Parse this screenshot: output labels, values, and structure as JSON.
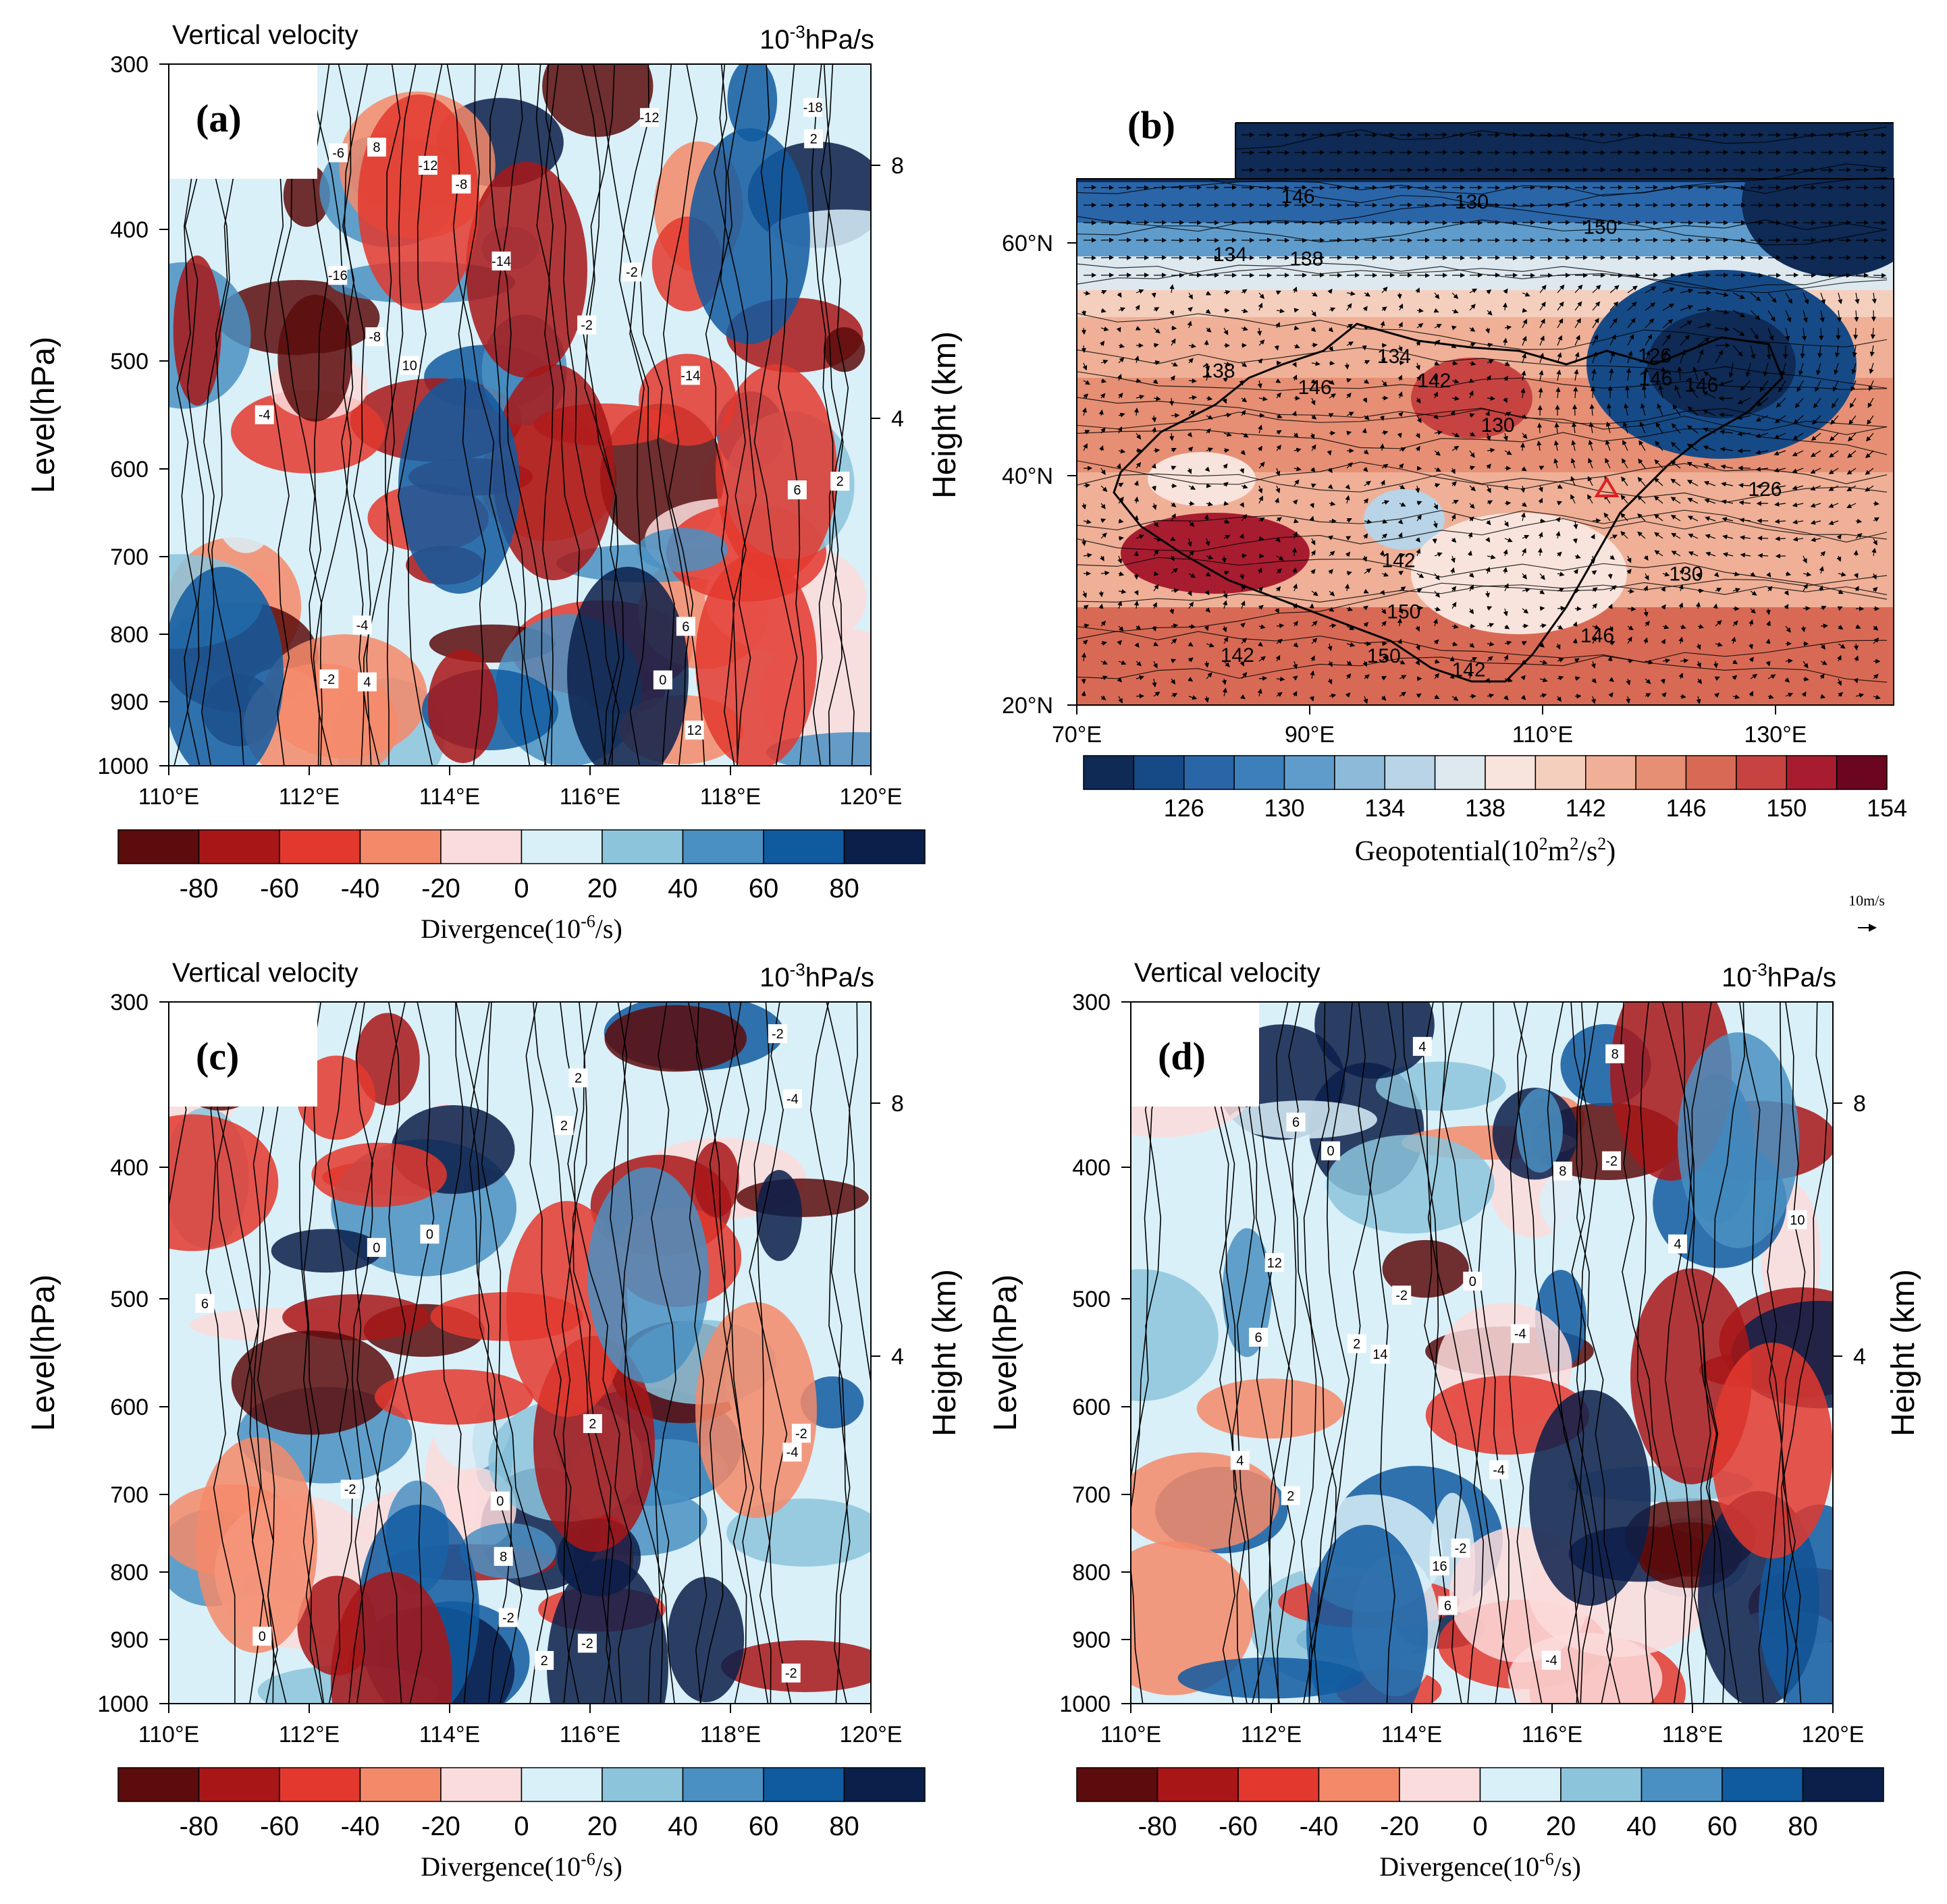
{
  "cross_sections": [
    {
      "id": "a",
      "panel_label": "(a)",
      "title": "Vertical velocity",
      "units": "10",
      "units_exp": "-3",
      "units_rest": "hPa/s",
      "ylabel": "Level(hPa)",
      "y2label": "Height (km)",
      "yticks": [
        "300",
        "400",
        "500",
        "600",
        "700",
        "800",
        "900",
        "1000"
      ],
      "y2ticks": [
        "8",
        "4"
      ],
      "xticks": [
        "110°E",
        "112°E",
        "114°E",
        "116°E",
        "118°E",
        "120°E"
      ],
      "contour_labels": [
        "-14",
        "-12",
        "-16",
        "-14",
        "-18",
        "-12",
        "-8",
        "-2",
        "6",
        "10",
        "12",
        "8",
        "4",
        "2",
        "0",
        "-8",
        "-6",
        "-2",
        "-4",
        "6",
        "-4",
        "-2",
        "2"
      ]
    },
    {
      "id": "c",
      "panel_label": "(c)",
      "title": "Vertical velocity",
      "units": "10",
      "units_exp": "-3",
      "units_rest": "hPa/s",
      "ylabel": "Level(hPa)",
      "y2label": "Height (km)",
      "yticks": [
        "300",
        "400",
        "500",
        "600",
        "700",
        "800",
        "900",
        "1000"
      ],
      "y2ticks": [
        "8",
        "4"
      ],
      "xticks": [
        "110°E",
        "112°E",
        "114°E",
        "116°E",
        "118°E",
        "120°E"
      ],
      "contour_labels": [
        "2",
        "0",
        "-2",
        "-2",
        "-4",
        "2",
        "0",
        "-2",
        "2",
        "-2",
        "8",
        "6",
        "-4",
        "-2",
        "0",
        "2",
        "0",
        "-2"
      ]
    },
    {
      "id": "d",
      "panel_label": "(d)",
      "title": "Vertical velocity",
      "units": "10",
      "units_exp": "-3",
      "units_rest": "hPa/s",
      "ylabel": "Level(hPa)",
      "y2label": "Height (km)",
      "yticks": [
        "300",
        "400",
        "500",
        "600",
        "700",
        "800",
        "900",
        "1000"
      ],
      "y2ticks": [
        "8",
        "4"
      ],
      "xticks": [
        "110°E",
        "112°E",
        "114°E",
        "116°E",
        "118°E",
        "120°E"
      ],
      "contour_labels": [
        "-4",
        "-4",
        "-2",
        "6",
        "14",
        "4",
        "16",
        "12",
        "10",
        "8",
        "6",
        "4",
        "2",
        "0",
        "-2",
        "-4",
        "8",
        "6",
        "4",
        "2",
        "0",
        "-2"
      ]
    }
  ],
  "map_panel": {
    "panel_label": "(b)",
    "lat_ticks": [
      "60°N",
      "40°N",
      "20°N"
    ],
    "lon_ticks": [
      "70°E",
      "90°E",
      "110°E",
      "130°E"
    ],
    "contour_labels": [
      "130",
      "126",
      "130",
      "134",
      "138",
      "138",
      "134",
      "126",
      "130",
      "142",
      "146",
      "142",
      "146",
      "150",
      "142",
      "146",
      "150",
      "146",
      "150",
      "146",
      "142"
    ],
    "colorbar_ticks": [
      "126",
      "130",
      "134",
      "138",
      "142",
      "146",
      "150",
      "154"
    ],
    "colorbar_title": "Geopotential(10",
    "colorbar_exp": "2",
    "colorbar_title_mid": "m",
    "colorbar_exp2": "2",
    "colorbar_title_end": "/s",
    "colorbar_exp3": "2",
    "colorbar_title_close": ")",
    "ref_vector_label": "10m/s",
    "colors": [
      "#0e2a55",
      "#164a86",
      "#2a65a8",
      "#3c7fba",
      "#5f9ccc",
      "#8dbad9",
      "#b8d4e6",
      "#dde8ef",
      "#f8e4dc",
      "#f5cfbd",
      "#efb097",
      "#e68f74",
      "#d86a55",
      "#c64341",
      "#a81c30",
      "#6b0520"
    ]
  },
  "divergence_colorbar": {
    "title": "Divergence(10",
    "exp": "-6",
    "title_end": "/s)",
    "ticks": [
      "-80",
      "-60",
      "-40",
      "-20",
      "0",
      "20",
      "40",
      "60",
      "80"
    ],
    "colors": [
      "#5c0c0c",
      "#a81618",
      "#e3382e",
      "#f4896a",
      "#fbdcdc",
      "#d9f0f9",
      "#8cc4dc",
      "#4a90c2",
      "#105aa0",
      "#0a1f4a"
    ]
  }
}
